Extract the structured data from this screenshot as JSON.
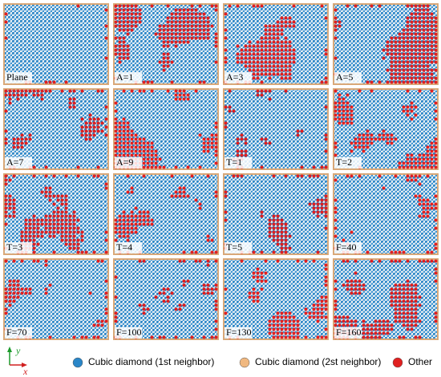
{
  "panels": [
    {
      "label": "Plane"
    },
    {
      "label": "A=1"
    },
    {
      "label": "A=3"
    },
    {
      "label": "A=5"
    },
    {
      "label": "A=7"
    },
    {
      "label": "A=9"
    },
    {
      "label": "T=1"
    },
    {
      "label": "T=2"
    },
    {
      "label": "T=3"
    },
    {
      "label": "T=4"
    },
    {
      "label": "T=5"
    },
    {
      "label": "F=40"
    },
    {
      "label": "F=70"
    },
    {
      "label": "F=100"
    },
    {
      "label": "F=130"
    },
    {
      "label": "F=160"
    }
  ],
  "axes": {
    "y": "y",
    "x": "x"
  },
  "legend": [
    {
      "label": "Cubic diamond (1st neighbor)"
    },
    {
      "label": "Cubic diamond (2st neighbor)"
    },
    {
      "label": "Other"
    }
  ]
}
